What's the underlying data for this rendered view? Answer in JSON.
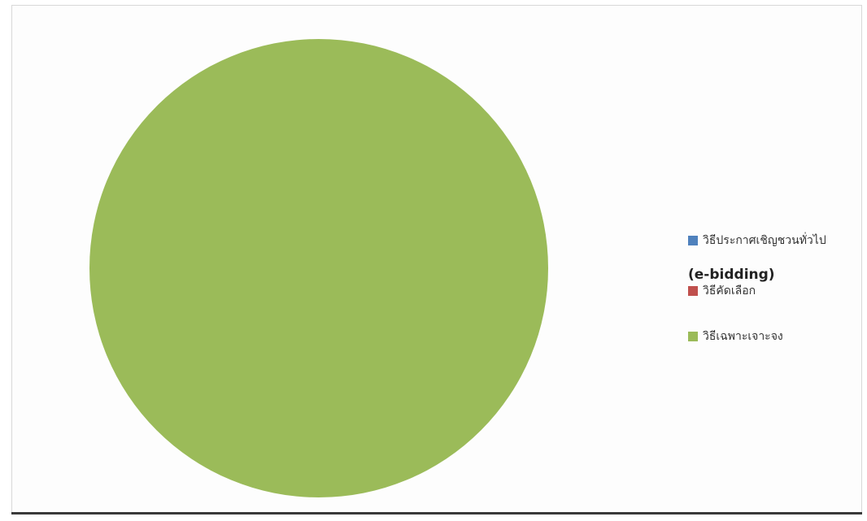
{
  "chart_data": {
    "type": "pie",
    "categories": [
      "วิธีประกาศเชิญชวนทั่วไป (e-bidding)",
      "วิธีคัดเลือก",
      "วิธีเฉพาะเจาะจง"
    ],
    "values": [
      0,
      0,
      100
    ],
    "colors": [
      "#4f81bd",
      "#c0504d",
      "#9bbb59"
    ],
    "legend_position": "right"
  },
  "legend": {
    "items": [
      {
        "label": "วิธีประกาศเชิญชวนทั่วไป",
        "label_line2": "(e-bidding)",
        "color": "#4f81bd"
      },
      {
        "label": "วิธีคัดเลือก",
        "color": "#c0504d"
      },
      {
        "label": "วิธีเฉพาะเจาะจง",
        "color": "#9bbb59"
      }
    ]
  }
}
